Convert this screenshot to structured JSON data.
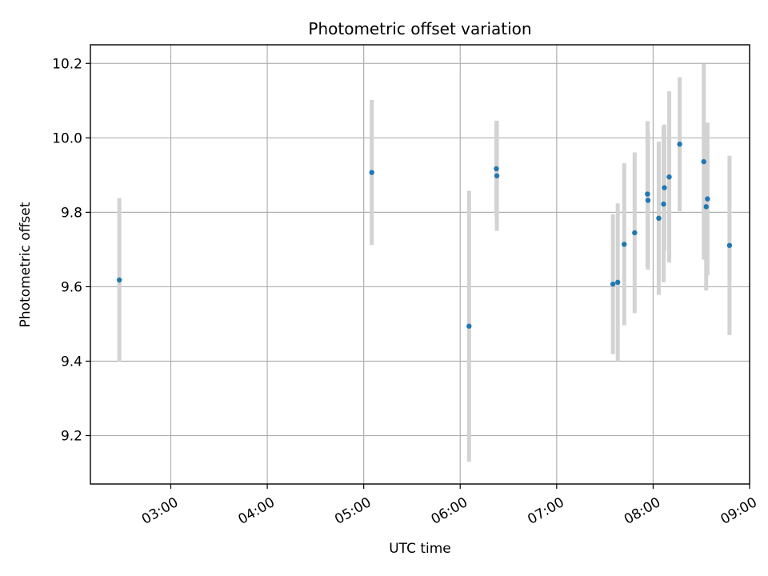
{
  "chart_data": {
    "type": "scatter",
    "title": "Photometric offset variation",
    "xlabel": "UTC time",
    "ylabel": "Photometric offset",
    "x_unit": "minutes after 00:00 UTC",
    "xlim": [
      130,
      540
    ],
    "ylim": [
      9.07,
      10.25
    ],
    "x_ticks": [
      {
        "value": 180,
        "label": "03:00"
      },
      {
        "value": 240,
        "label": "04:00"
      },
      {
        "value": 300,
        "label": "05:00"
      },
      {
        "value": 360,
        "label": "06:00"
      },
      {
        "value": 420,
        "label": "07:00"
      },
      {
        "value": 480,
        "label": "08:00"
      },
      {
        "value": 540,
        "label": "09:00"
      }
    ],
    "y_ticks": [
      {
        "value": 9.2,
        "label": "9.2"
      },
      {
        "value": 9.4,
        "label": "9.4"
      },
      {
        "value": 9.6,
        "label": "9.6"
      },
      {
        "value": 9.8,
        "label": "9.8"
      },
      {
        "value": 10.0,
        "label": "10.0"
      },
      {
        "value": 10.2,
        "label": "10.2"
      }
    ],
    "grid": true,
    "marker_color": "#1f77b4",
    "errorbar_color": "#d3d3d3",
    "points": [
      {
        "x": 148.0,
        "y": 9.618,
        "err": 0.22
      },
      {
        "x": 305.0,
        "y": 9.907,
        "err": 0.195
      },
      {
        "x": 365.5,
        "y": 9.494,
        "err": 0.364
      },
      {
        "x": 382.5,
        "y": 9.917,
        "err": 0.128
      },
      {
        "x": 382.8,
        "y": 9.898,
        "err": 0.148
      },
      {
        "x": 455.0,
        "y": 9.607,
        "err": 0.188
      },
      {
        "x": 458.0,
        "y": 9.612,
        "err": 0.212
      },
      {
        "x": 462.0,
        "y": 9.714,
        "err": 0.218
      },
      {
        "x": 468.5,
        "y": 9.745,
        "err": 0.216
      },
      {
        "x": 476.5,
        "y": 9.849,
        "err": 0.196
      },
      {
        "x": 476.8,
        "y": 9.832,
        "err": 0.186
      },
      {
        "x": 483.5,
        "y": 9.784,
        "err": 0.206
      },
      {
        "x": 486.5,
        "y": 9.822,
        "err": 0.21
      },
      {
        "x": 487.0,
        "y": 9.866,
        "err": 0.17
      },
      {
        "x": 490.0,
        "y": 9.895,
        "err": 0.23
      },
      {
        "x": 496.5,
        "y": 9.983,
        "err": 0.18
      },
      {
        "x": 511.5,
        "y": 9.936,
        "err": 0.263
      },
      {
        "x": 513.0,
        "y": 9.815,
        "err": 0.225
      },
      {
        "x": 513.8,
        "y": 9.836,
        "err": 0.205
      },
      {
        "x": 527.5,
        "y": 9.711,
        "err": 0.241
      }
    ]
  }
}
